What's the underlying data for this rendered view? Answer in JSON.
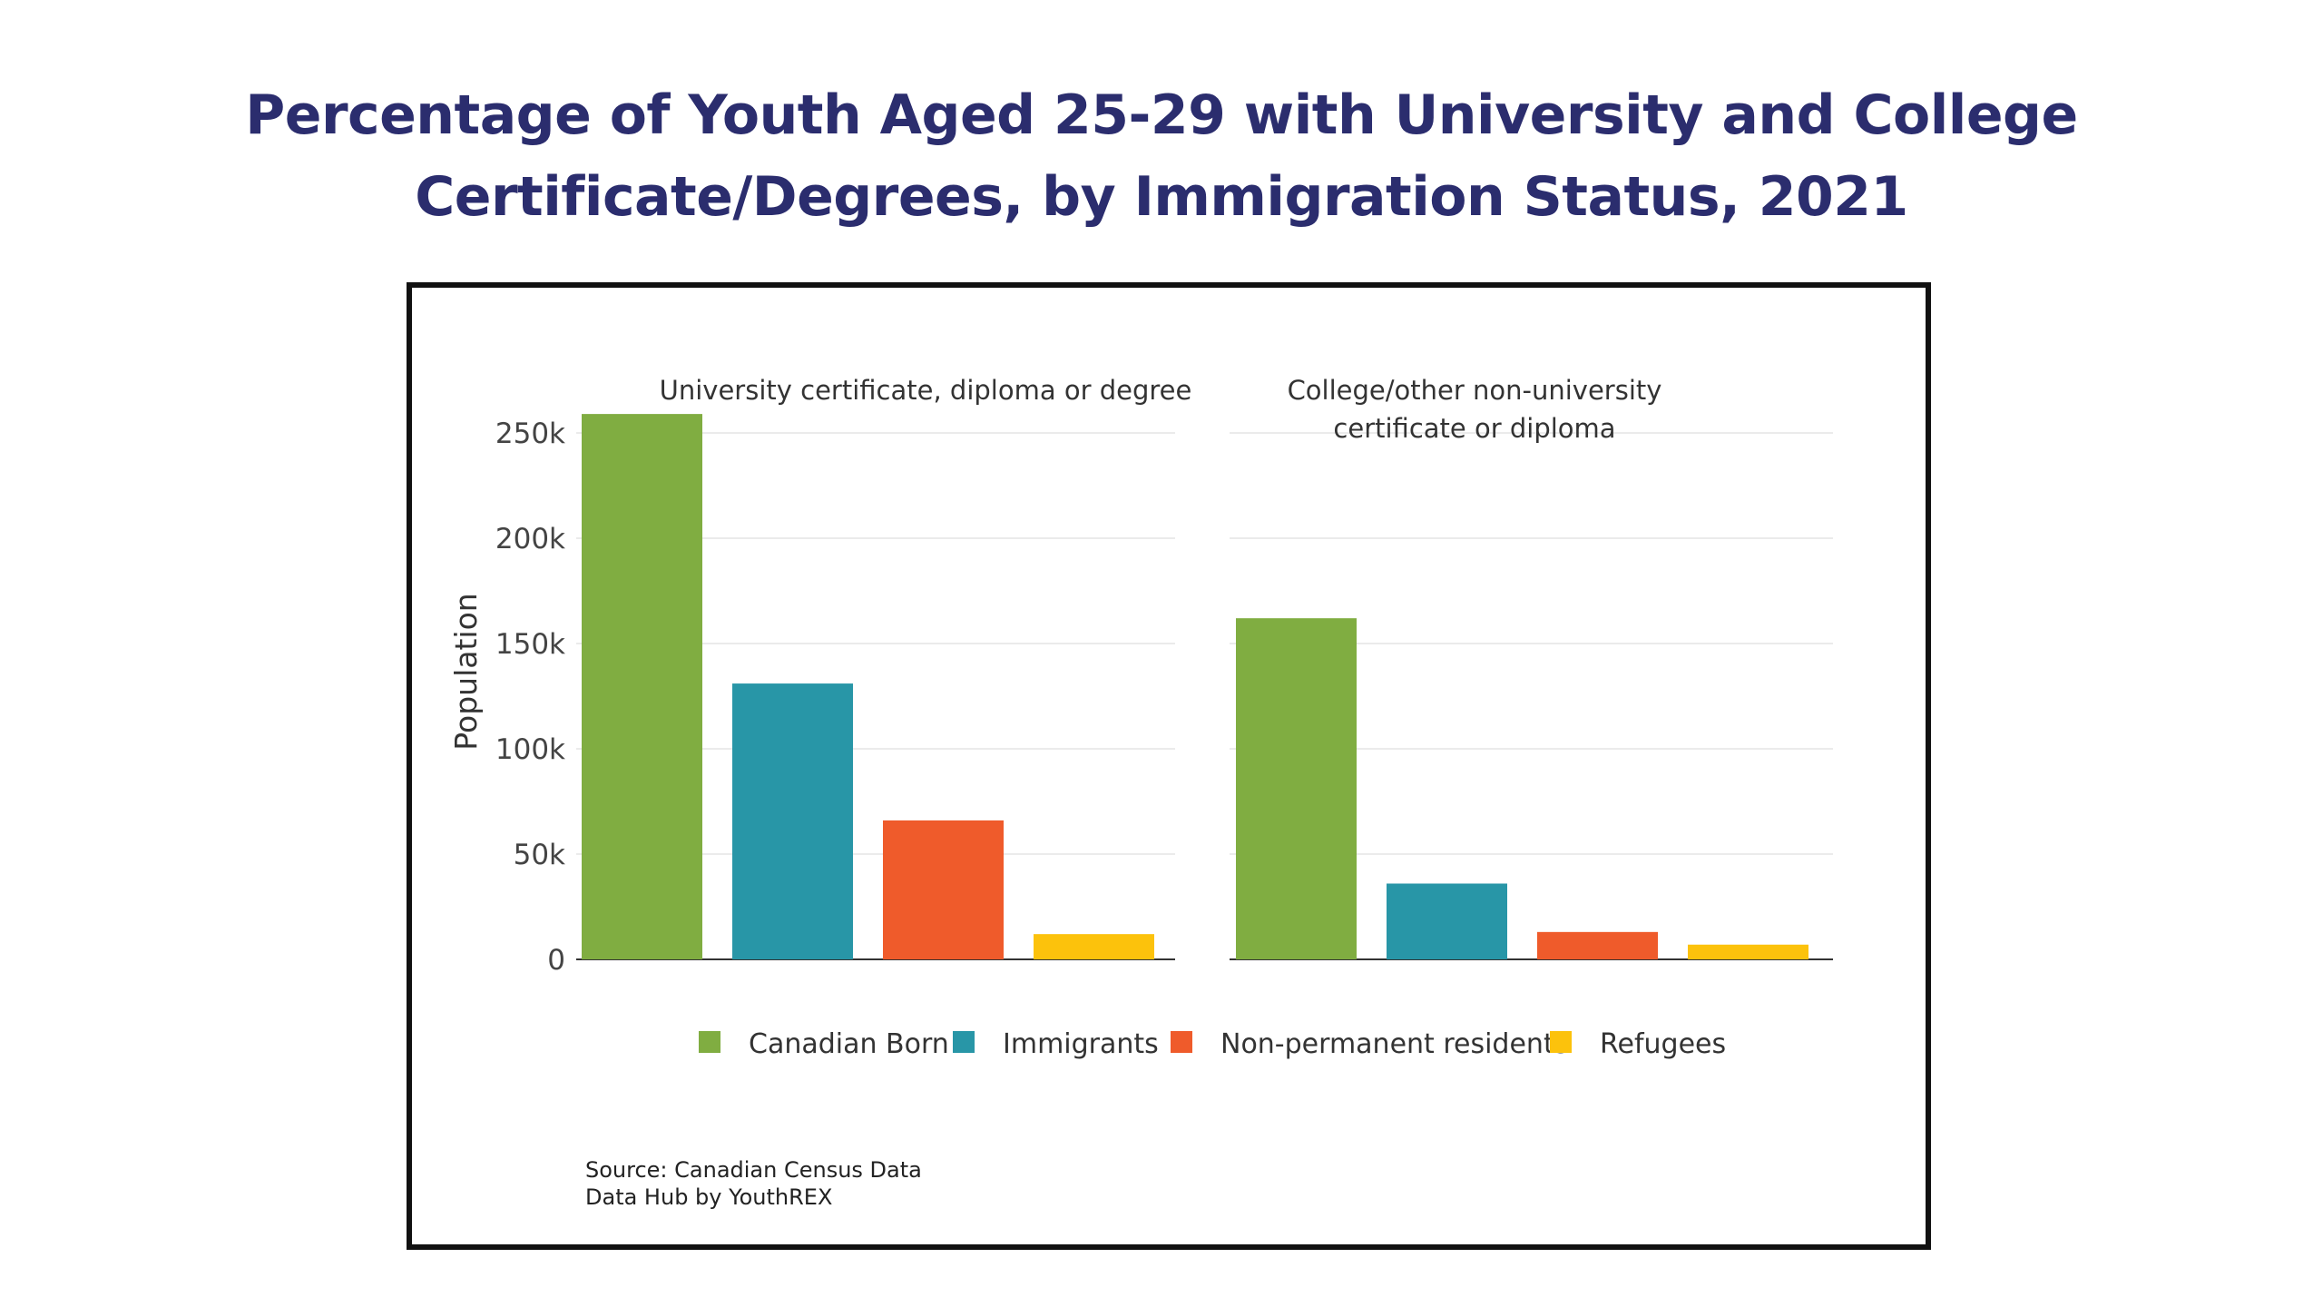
{
  "title_line1": "Percentage of Youth Aged 25-29 with University and College",
  "title_line2": "Certificate/Degrees, by Immigration Status, 2021",
  "source_line1": "Source: Canadian Census Data",
  "source_line2": "Data Hub by YouthREX",
  "chart_data": {
    "type": "bar",
    "ylabel": "Population",
    "ylim": [
      0,
      260000
    ],
    "yticks": [
      0,
      50000,
      100000,
      150000,
      200000,
      250000
    ],
    "ytick_labels": [
      "0",
      "50k",
      "100k",
      "150k",
      "200k",
      "250k"
    ],
    "grid": true,
    "legend_position": "bottom",
    "categories": [
      "Canadian Born",
      "Immigrants",
      "Non-permanent residents",
      "Refugees"
    ],
    "colors": [
      "#80ad41",
      "#2896a7",
      "#ef5b2b",
      "#fcc20c"
    ],
    "panels": [
      {
        "title": "University certificate, diploma or degree",
        "values": [
          259000,
          131000,
          66000,
          12000
        ]
      },
      {
        "title_line1": "College/other non-university",
        "title_line2": "certificate or diploma",
        "values": [
          162000,
          36000,
          13000,
          7000
        ]
      }
    ]
  }
}
